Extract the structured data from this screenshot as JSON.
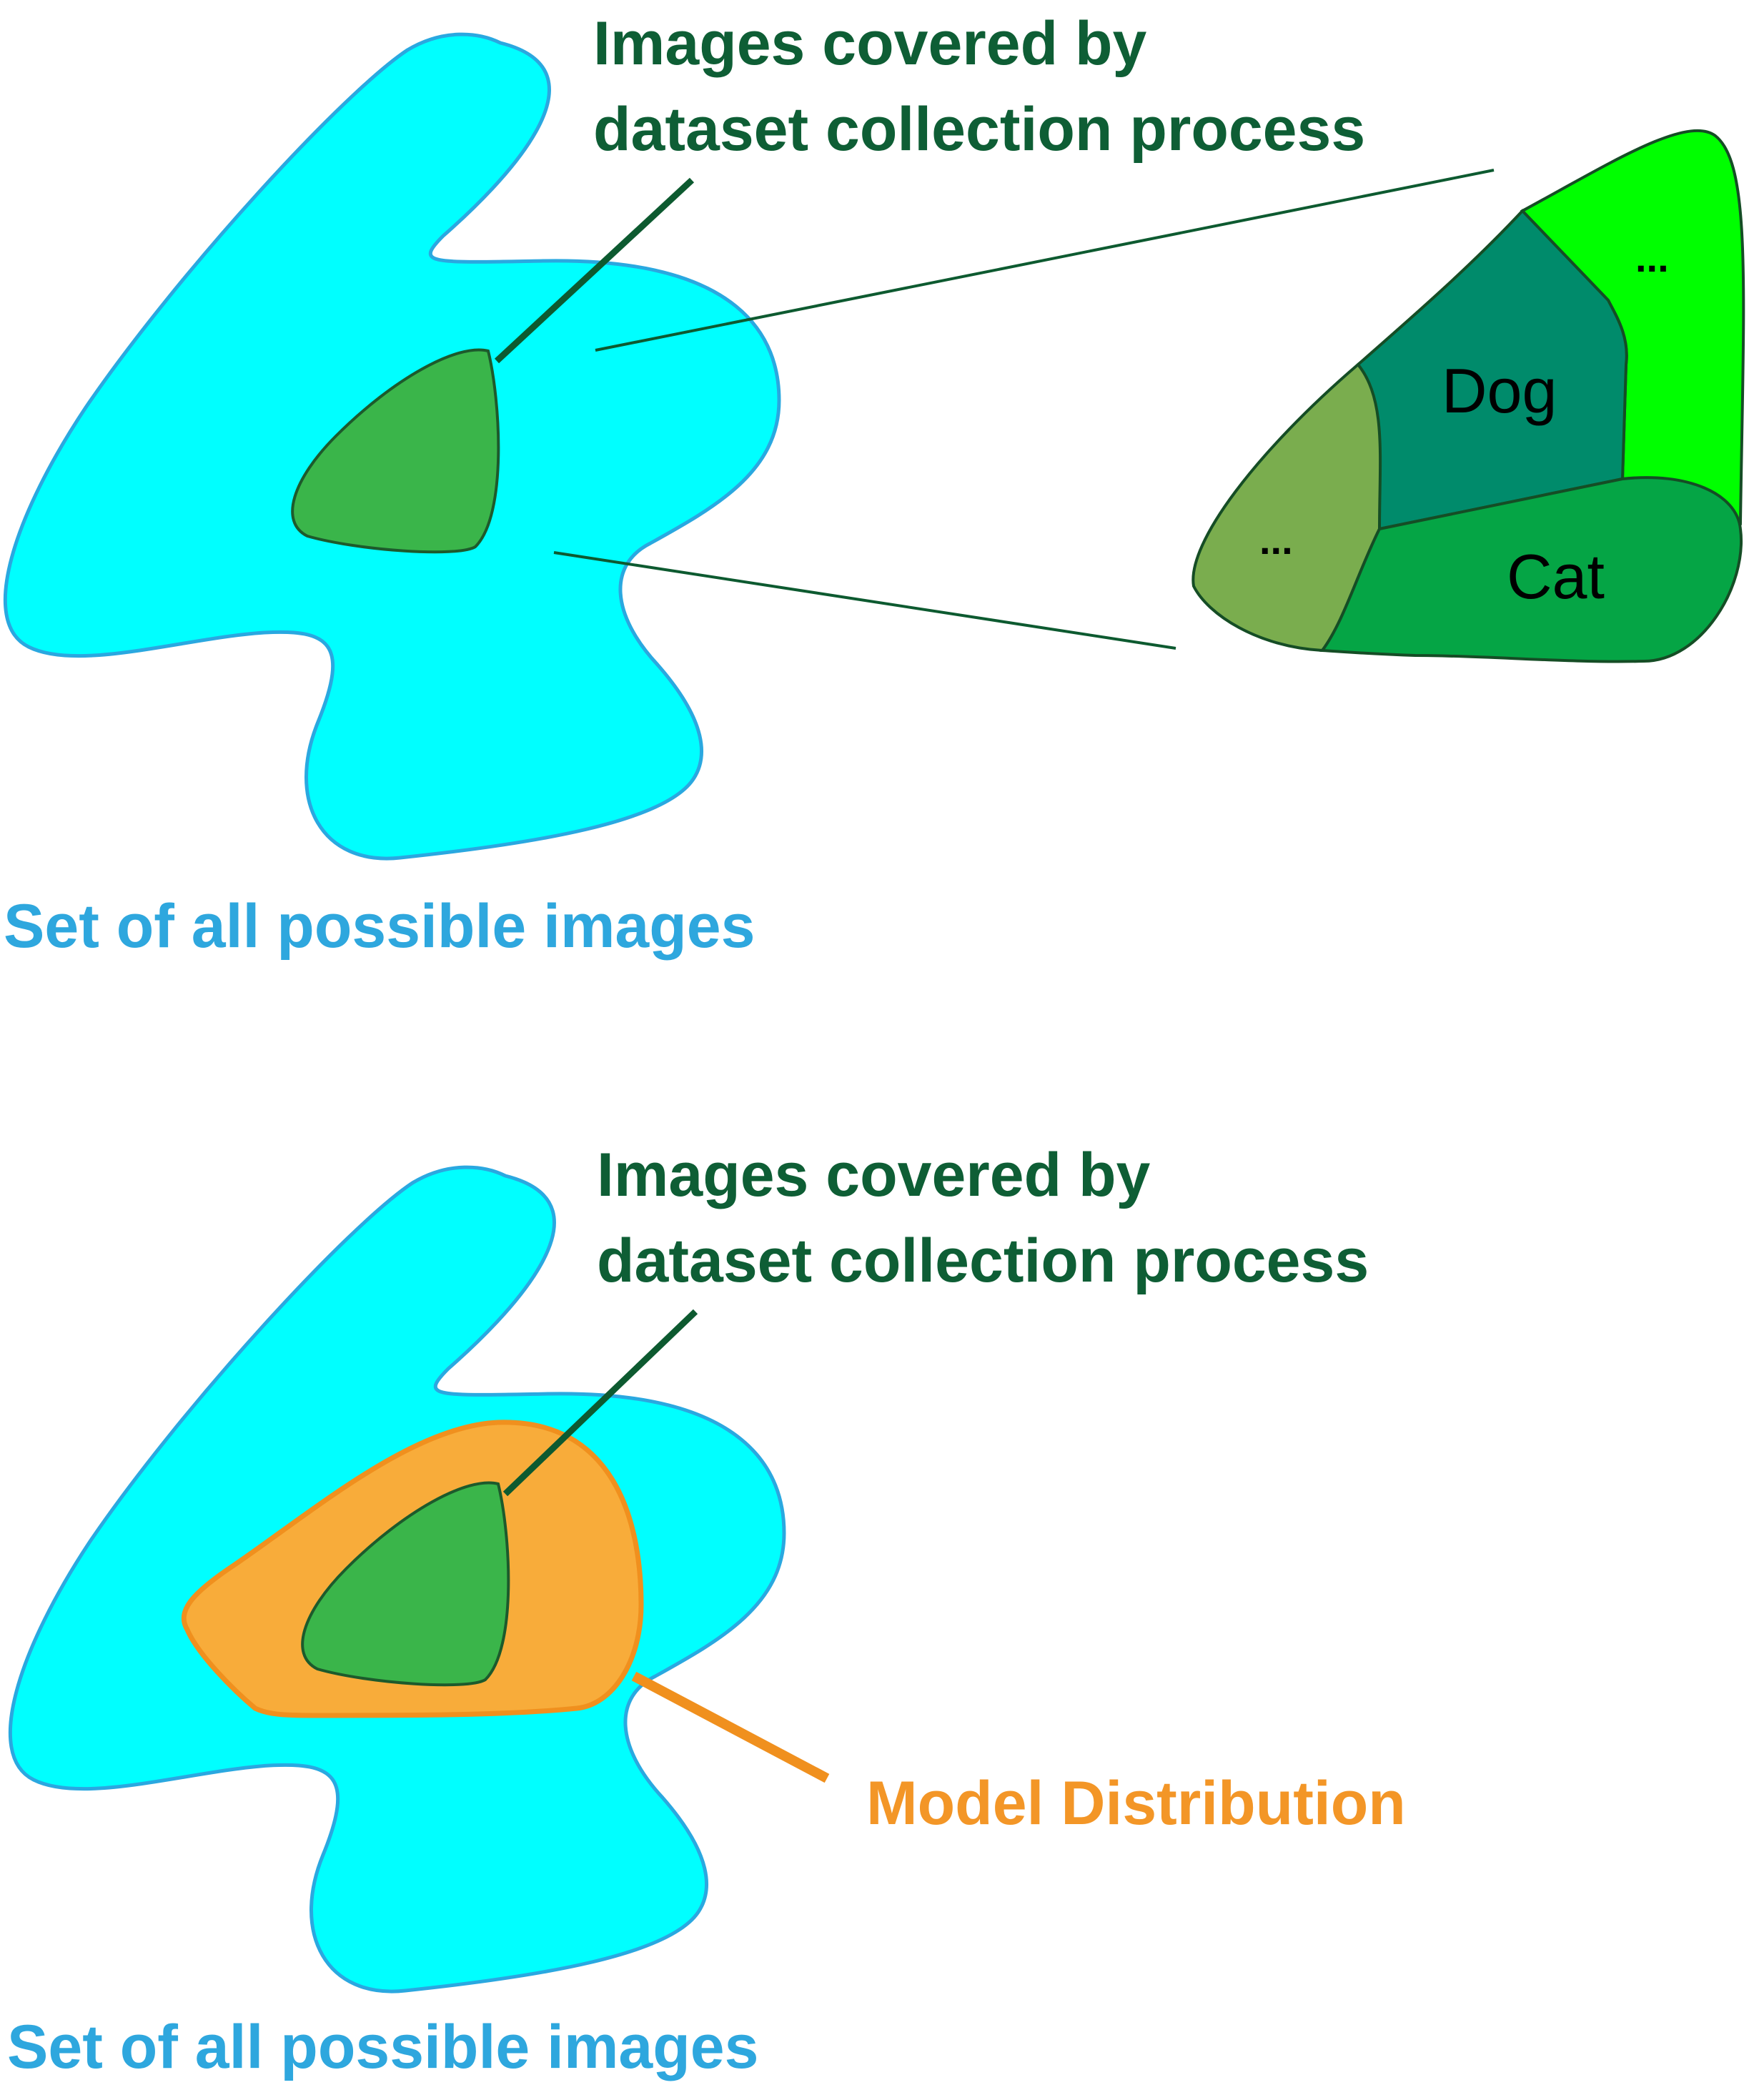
{
  "colors": {
    "universe_fill": "#00ffff",
    "universe_stroke": "#2aa8e0",
    "dataset_fill": "#3ab54a",
    "dataset_stroke": "#1d5a2c",
    "label_green": "#0e5e35",
    "label_blue": "#2ea7de",
    "model_fill": "#f8ac3a",
    "model_stroke": "#f0901e",
    "model_label": "#f39627",
    "dog_fill": "#008b6b",
    "cat_fill": "#05a545",
    "bright_fill": "#00ff00",
    "olive_fill": "#7aad4e",
    "region_stroke": "#154d25",
    "leader": "#0d5a30"
  },
  "top_panel": {
    "dataset_label_line1": "Images covered by",
    "dataset_label_line2": "dataset collection process",
    "universe_label": "Set of all possible images",
    "zoom": {
      "dog": "Dog",
      "cat": "Cat",
      "ellipsis_left": "...",
      "ellipsis_right": "..."
    }
  },
  "bottom_panel": {
    "dataset_label_line1": "Images covered by",
    "dataset_label_line2": "dataset collection process",
    "model_label": "Model Distribution",
    "universe_label": "Set of all possible images"
  }
}
